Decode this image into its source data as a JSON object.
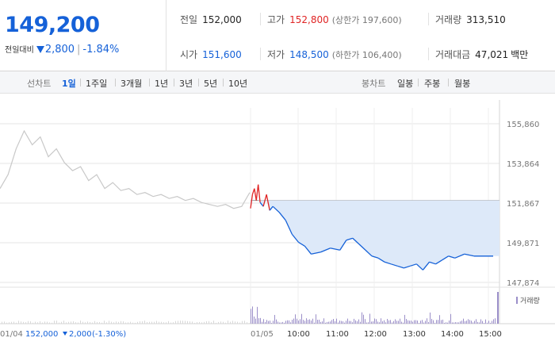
{
  "quote": {
    "price": "149,200",
    "change_label": "전일대비",
    "change_amount": "2,800",
    "change_percent": "-1.84%",
    "change_dir": "down",
    "prev_close": {
      "label": "전일",
      "value": "152,000"
    },
    "high": {
      "label": "고가",
      "value": "152,800",
      "limit": "(상한가 197,600)"
    },
    "volume": {
      "label": "거래량",
      "value": "313,510"
    },
    "open": {
      "label": "시가",
      "value": "151,600"
    },
    "low": {
      "label": "저가",
      "value": "148,500",
      "limit": "(하한가 106,400)"
    },
    "amount": {
      "label": "거래대금",
      "value": "47,021",
      "unit": "백만"
    }
  },
  "tabs": {
    "line_label": "선차트",
    "line_items": [
      "1일",
      "1주일",
      "3개월",
      "1년",
      "3년",
      "5년",
      "10년"
    ],
    "line_active": 0,
    "candle_label": "봉차트",
    "candle_items": [
      "일봉",
      "주봉",
      "월봉"
    ]
  },
  "colors": {
    "up": "#e02424",
    "down": "#1561d8",
    "area_fill": "#dde9f9",
    "prev_day_line": "#c8c8c8",
    "volume_bar": "#9b8fc9",
    "grid": "#e6e6e6"
  },
  "chart_data": {
    "type": "line",
    "ylim": [
      147874,
      155860
    ],
    "y_ticks": [
      "155,860",
      "153,864",
      "151,867",
      "149,871",
      "147,874"
    ],
    "x_ticks": [
      "01/04",
      "01/05",
      "10:00",
      "11:00",
      "12:00",
      "13:00",
      "14:00",
      "15:00"
    ],
    "baseline": 152000,
    "footer_info": {
      "date": "01/04",
      "close": "152,000",
      "change": "2,000",
      "change_pct": "(-1.30%)"
    },
    "volume_legend": "거래량",
    "previous_day": {
      "points": [
        [
          0,
          152600
        ],
        [
          1,
          153300
        ],
        [
          2,
          154600
        ],
        [
          3,
          155500
        ],
        [
          4,
          154800
        ],
        [
          5,
          155200
        ],
        [
          6,
          154200
        ],
        [
          7,
          154600
        ],
        [
          8,
          153900
        ],
        [
          9,
          153500
        ],
        [
          10,
          153700
        ],
        [
          11,
          153000
        ],
        [
          12,
          153300
        ],
        [
          13,
          152600
        ],
        [
          14,
          152900
        ],
        [
          15,
          152500
        ],
        [
          16,
          152600
        ],
        [
          17,
          152300
        ],
        [
          18,
          152400
        ],
        [
          19,
          152200
        ],
        [
          20,
          152300
        ],
        [
          21,
          152100
        ],
        [
          22,
          152200
        ],
        [
          23,
          152000
        ],
        [
          24,
          152100
        ],
        [
          25,
          151900
        ],
        [
          26,
          151800
        ],
        [
          27,
          151700
        ],
        [
          28,
          151800
        ],
        [
          29,
          151600
        ],
        [
          30,
          151700
        ],
        [
          31,
          152400
        ]
      ]
    },
    "today": {
      "points": [
        [
          0,
          151600
        ],
        [
          3,
          152300
        ],
        [
          6,
          152600
        ],
        [
          9,
          152000
        ],
        [
          12,
          152800
        ],
        [
          15,
          151900
        ],
        [
          20,
          151700
        ],
        [
          25,
          152300
        ],
        [
          30,
          151500
        ],
        [
          35,
          151700
        ],
        [
          45,
          151400
        ],
        [
          55,
          151000
        ],
        [
          65,
          150300
        ],
        [
          75,
          149900
        ],
        [
          85,
          149700
        ],
        [
          95,
          149300
        ],
        [
          110,
          149400
        ],
        [
          125,
          149600
        ],
        [
          140,
          149500
        ],
        [
          150,
          150000
        ],
        [
          160,
          150100
        ],
        [
          170,
          149800
        ],
        [
          180,
          149500
        ],
        [
          190,
          149200
        ],
        [
          200,
          149100
        ],
        [
          210,
          148900
        ],
        [
          220,
          148800
        ],
        [
          230,
          148700
        ],
        [
          240,
          148600
        ],
        [
          250,
          148700
        ],
        [
          260,
          148800
        ],
        [
          270,
          148500
        ],
        [
          280,
          148900
        ],
        [
          290,
          148800
        ],
        [
          300,
          149000
        ],
        [
          310,
          149200
        ],
        [
          320,
          149100
        ],
        [
          335,
          149300
        ],
        [
          350,
          149200
        ],
        [
          380,
          149200
        ]
      ]
    }
  }
}
